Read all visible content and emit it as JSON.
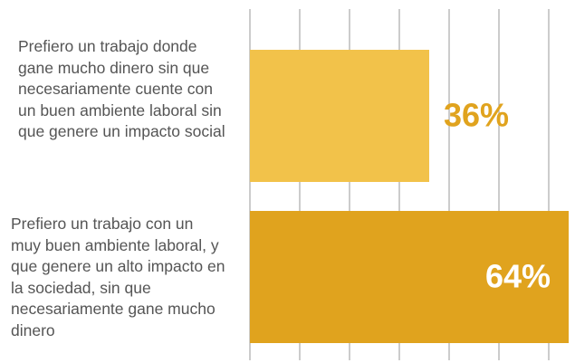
{
  "chart_data": {
    "type": "barh",
    "categories": [
      "Prefiero un trabajo donde gane mucho dinero sin que necesariamente cuente con un buen ambiente laboral sin que genere un impacto social",
      "Prefiero un trabajo con un muy buen ambiente laboral, y que genere un alto impacto en la sociedad, sin que necesariamente gane mucho dinero"
    ],
    "values": [
      36,
      64
    ],
    "value_labels": [
      "36%",
      "64%"
    ],
    "colors": [
      "#f2c24a",
      "#e0a31e"
    ],
    "xlim": [
      0,
      64
    ],
    "xticks": [
      0,
      10,
      20,
      30,
      40,
      50,
      60
    ],
    "grid": true
  }
}
